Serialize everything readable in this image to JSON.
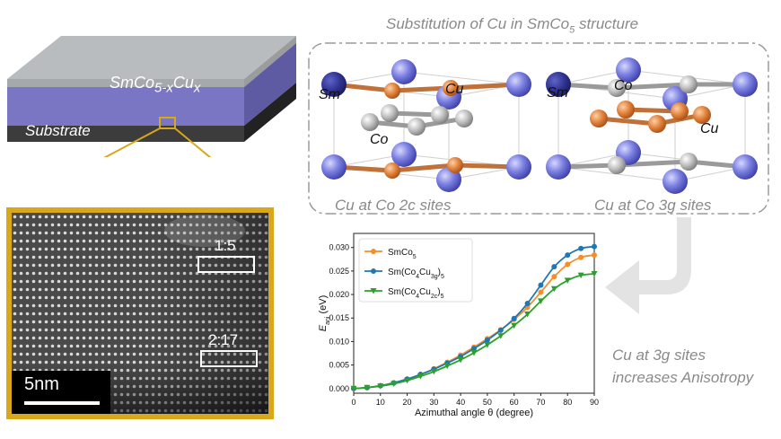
{
  "schematic": {
    "film_label": "SmCo5-xCux",
    "substrate_label": "Substrate"
  },
  "micrograph": {
    "ratio_top": "1:5",
    "ratio_bottom": "2:17",
    "scale_label": "5nm"
  },
  "structures": {
    "title": "Substitution of Cu in SmCo5 structure",
    "left_caption": "Cu at Co 2c sites",
    "right_caption": "Cu at Co 3g sites",
    "left_labels": {
      "sm": "Sm",
      "cu": "Cu",
      "co": "Co"
    },
    "right_labels": {
      "sm": "Sm",
      "co": "Co",
      "cu": "Cu"
    }
  },
  "note": {
    "line1": "Cu at 3g sites",
    "line2": "increases Anisotropy"
  },
  "colors": {
    "sm_atom": "#7b7fe0",
    "cu_atom": "#e0803a",
    "co_atom": "#b8b8b8",
    "highlight_frame": "#d9a71a",
    "film": "#7a76c4",
    "series_smco5": "#f28e2b",
    "series_3g": "#1f77b4",
    "series_2c": "#2ca02c"
  },
  "chart_data": {
    "type": "line",
    "title": "",
    "xlabel": "Azimuthal angle θ (degree)",
    "ylabel": "E_ani (eV)",
    "xlim": [
      0,
      90
    ],
    "ylim": [
      -0.001,
      0.033
    ],
    "xticks": [
      "0",
      "10",
      "20",
      "30",
      "40",
      "50",
      "60",
      "70",
      "80",
      "90"
    ],
    "yticks": [
      "0.000",
      "0.005",
      "0.010",
      "0.015",
      "0.020",
      "0.025",
      "0.030"
    ],
    "grid": false,
    "legend_position": "top-left",
    "x": [
      0,
      5,
      10,
      15,
      20,
      25,
      30,
      35,
      40,
      45,
      50,
      55,
      60,
      65,
      70,
      75,
      80,
      85,
      90
    ],
    "series": [
      {
        "name": "SmCo5",
        "marker": "circle",
        "values": [
          0.0,
          0.0002,
          0.0006,
          0.0012,
          0.002,
          0.003,
          0.0042,
          0.0056,
          0.0071,
          0.0088,
          0.0106,
          0.0125,
          0.0147,
          0.0173,
          0.0205,
          0.0238,
          0.0264,
          0.0279,
          0.0284
        ]
      },
      {
        "name": "Sm(Co4Cu3g)5",
        "marker": "circle",
        "values": [
          0.0,
          0.0002,
          0.0006,
          0.0012,
          0.002,
          0.003,
          0.0041,
          0.0054,
          0.0068,
          0.0085,
          0.0103,
          0.0124,
          0.0149,
          0.0181,
          0.022,
          0.0259,
          0.0284,
          0.0298,
          0.0302
        ]
      },
      {
        "name": "Sm(Co4Cu2c)5",
        "marker": "triangle",
        "values": [
          0.0,
          0.0002,
          0.0005,
          0.001,
          0.0017,
          0.0026,
          0.0036,
          0.0048,
          0.0061,
          0.0076,
          0.0093,
          0.0112,
          0.0134,
          0.0158,
          0.0186,
          0.0212,
          0.023,
          0.0241,
          0.0244
        ]
      }
    ]
  }
}
